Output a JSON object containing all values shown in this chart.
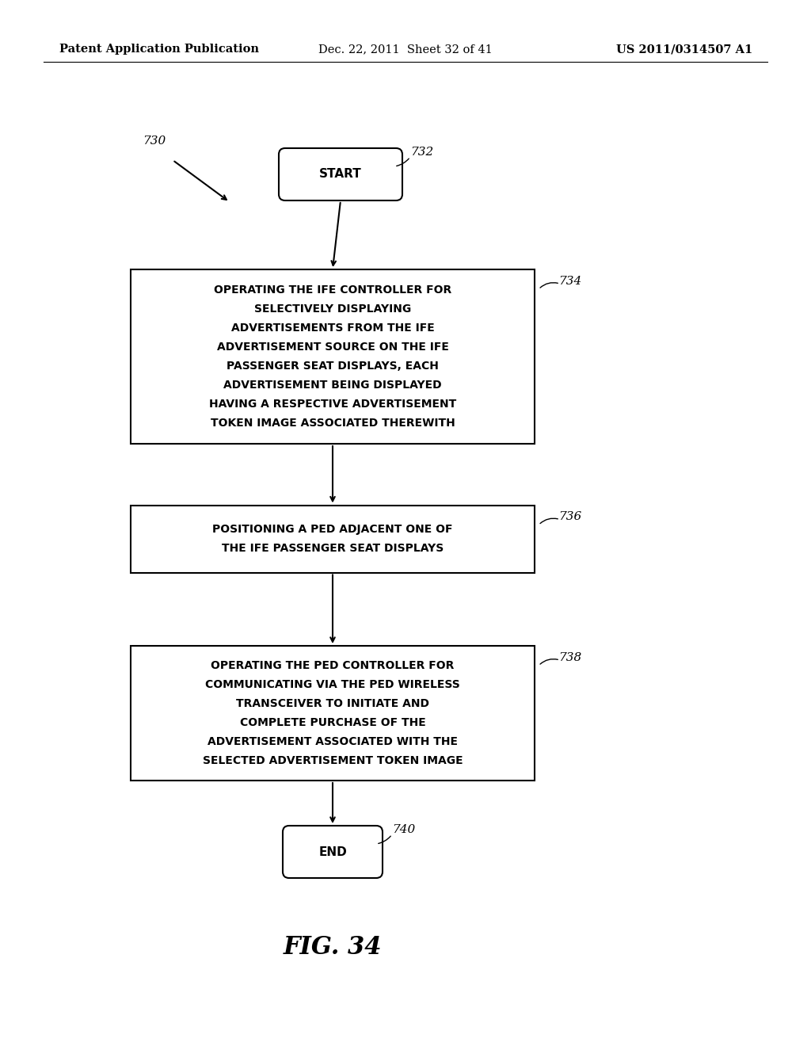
{
  "background_color": "#ffffff",
  "header_left": "Patent Application Publication",
  "header_center": "Dec. 22, 2011  Sheet 32 of 41",
  "header_right": "US 2011/0314507 A1",
  "fig_label": "FIG. 34",
  "start_label": "START",
  "end_label": "END",
  "boxes": [
    {
      "id": "box1",
      "lines": [
        "OPERATING THE IFE CONTROLLER FOR",
        "SELECTIVELY DISPLAYING",
        "ADVERTISEMENTS FROM THE IFE",
        "ADVERTISEMENT SOURCE ON THE IFE",
        "PASSENGER SEAT DISPLAYS, EACH",
        "ADVERTISEMENT BEING DISPLAYED",
        "HAVING A RESPECTIVE ADVERTISEMENT",
        "TOKEN IMAGE ASSOCIATED THEREWITH"
      ],
      "label": "734"
    },
    {
      "id": "box2",
      "lines": [
        "POSITIONING A PED ADJACENT ONE OF",
        "THE IFE PASSENGER SEAT DISPLAYS"
      ],
      "label": "736"
    },
    {
      "id": "box3",
      "lines": [
        "OPERATING THE PED CONTROLLER FOR",
        "COMMUNICATING VIA THE PED WIRELESS",
        "TRANSCEIVER TO INITIATE AND",
        "COMPLETE PURCHASE OF THE",
        "ADVERTISEMENT ASSOCIATED WITH THE",
        "SELECTED ADVERTISEMENT TOKEN IMAGE"
      ],
      "label": "738"
    }
  ]
}
